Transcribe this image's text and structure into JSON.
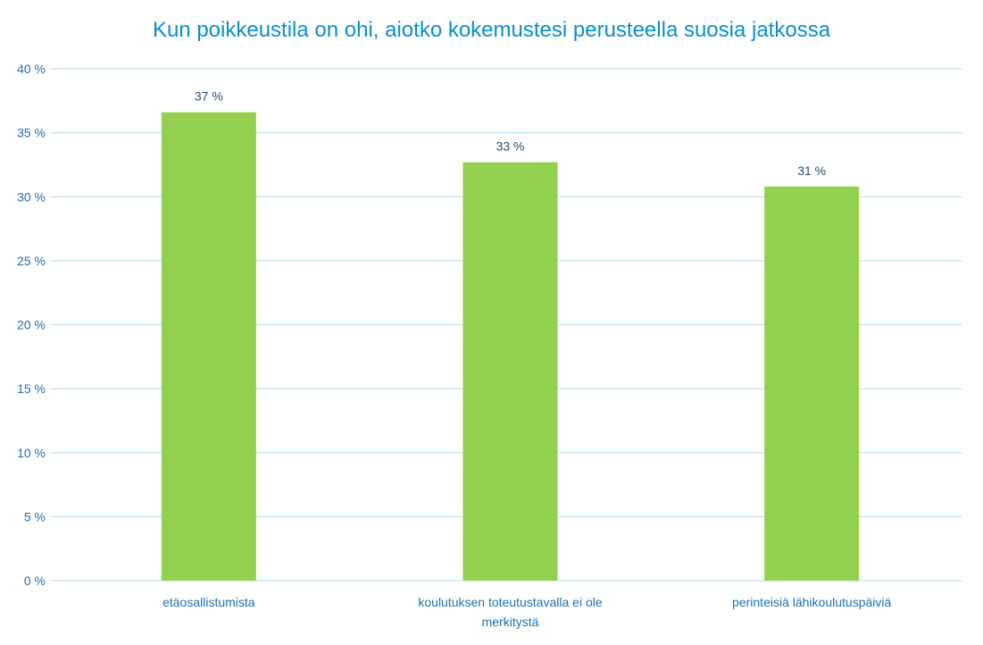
{
  "chart_data": {
    "type": "bar",
    "title": "Kun poikkeustila on ohi, aiotko kokemustesi perusteella suosia jatkossa",
    "categories": [
      [
        "etäosallistumista"
      ],
      [
        "koulutuksen toteutustavalla ei ole",
        "merkitystä"
      ],
      [
        "perinteisiä lähikoulutuspäiviä"
      ]
    ],
    "values": [
      36.6,
      32.7,
      30.8
    ],
    "data_labels": [
      "37 %",
      "33 %",
      "31 %"
    ],
    "ylim": [
      0,
      40
    ],
    "yticks": [
      0,
      5,
      10,
      15,
      20,
      25,
      30,
      35,
      40
    ],
    "ytick_labels": [
      "0 %",
      "5 %",
      "10 %",
      "15 %",
      "20 %",
      "25 %",
      "30 %",
      "35 %",
      "40 %"
    ],
    "grid": true,
    "colors": {
      "bar": "#92d050",
      "grid": "#bfe3f2",
      "title": "#0a8fcf",
      "ticks": "#1f6fb0",
      "data_labels": "#1f4e79"
    }
  }
}
